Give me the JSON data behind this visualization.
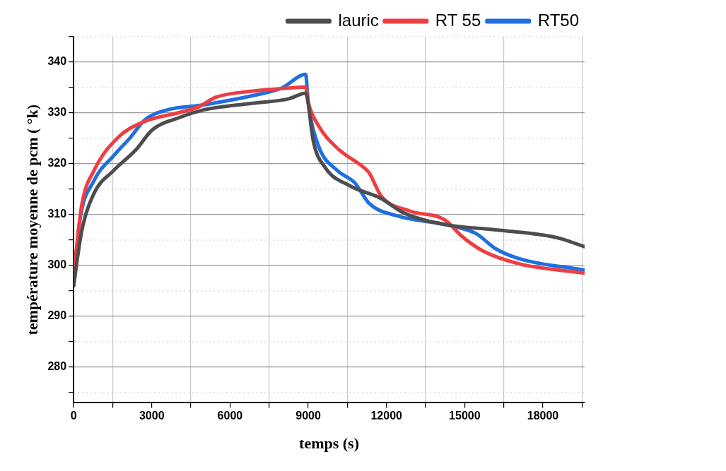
{
  "chart_data": {
    "type": "line",
    "xlabel": "temps (s)",
    "ylabel": "température moyenne de pcm ( °k)",
    "xlim": [
      0,
      19600
    ],
    "ylim": [
      273,
      345
    ],
    "xticks": [
      0,
      {
        "value": 1500,
        "label": null
      },
      3000,
      {
        "value": 4500,
        "label": null
      },
      6000,
      {
        "value": 7500,
        "label": null
      },
      9000,
      {
        "value": 10500,
        "label": null
      },
      12000,
      {
        "value": 13500,
        "label": null
      },
      15000,
      {
        "value": 16500,
        "label": null
      },
      18000,
      {
        "value": 19500,
        "label": null
      }
    ],
    "yticks": [
      {
        "value": 275,
        "label": null
      },
      280,
      {
        "value": 285,
        "label": null
      },
      290,
      {
        "value": 295,
        "label": null
      },
      300,
      {
        "value": 305,
        "label": null
      },
      310,
      {
        "value": 315,
        "label": null
      },
      320,
      {
        "value": 325,
        "label": null
      },
      330,
      {
        "value": 335,
        "label": null
      },
      340,
      {
        "value": 345,
        "label": null
      }
    ],
    "grid": true,
    "legend": "top right",
    "line_style": "solid",
    "series": [
      {
        "name": "lauric",
        "color": "#4d4d4d",
        "x": [
          0,
          310,
          785,
          1540,
          2380,
          3025,
          4060,
          4985,
          6860,
          8260,
          8900,
          8960,
          9190,
          9660,
          10590,
          11790,
          12640,
          14310,
          16190,
          18520,
          19600
        ],
        "values": [
          296,
          306.7,
          314.2,
          318.7,
          322.7,
          326.7,
          329.1,
          330.6,
          331.9,
          332.8,
          333.9,
          333.1,
          324.6,
          319.2,
          315.7,
          313.2,
          310.4,
          308,
          307,
          305.5,
          303.7
        ]
      },
      {
        "name": "RT 55",
        "color": "#ef3e42",
        "x": [
          0,
          310,
          785,
          1710,
          2660,
          4060,
          4790,
          5460,
          6860,
          8260,
          8900,
          9000,
          9380,
          10110,
          11150,
          11340,
          11790,
          12910,
          14230,
          14880,
          15720,
          17120,
          19600
        ],
        "values": [
          298,
          311.8,
          318.7,
          325.2,
          328.2,
          330.1,
          331.2,
          333.1,
          334.3,
          334.9,
          335.1,
          332.1,
          327.6,
          323.1,
          319.2,
          318.2,
          313.7,
          310.7,
          309,
          305.8,
          302.8,
          300.3,
          298.5
        ]
      },
      {
        "name": "RT50",
        "color": "#1f6fe0",
        "x": [
          0,
          220,
          785,
          1540,
          2180,
          2745,
          3590,
          4985,
          6860,
          7980,
          8900,
          9000,
          9380,
          10110,
          10780,
          11340,
          12460,
          14310,
          15430,
          16190,
          17120,
          19600
        ],
        "values": [
          296,
          308.2,
          316.7,
          321.6,
          325.2,
          328.7,
          330.6,
          331.6,
          333.4,
          334.9,
          337.6,
          332.1,
          323.7,
          318.7,
          316.3,
          312.2,
          309.7,
          308,
          306.3,
          303.3,
          301.3,
          299.1
        ]
      }
    ]
  }
}
